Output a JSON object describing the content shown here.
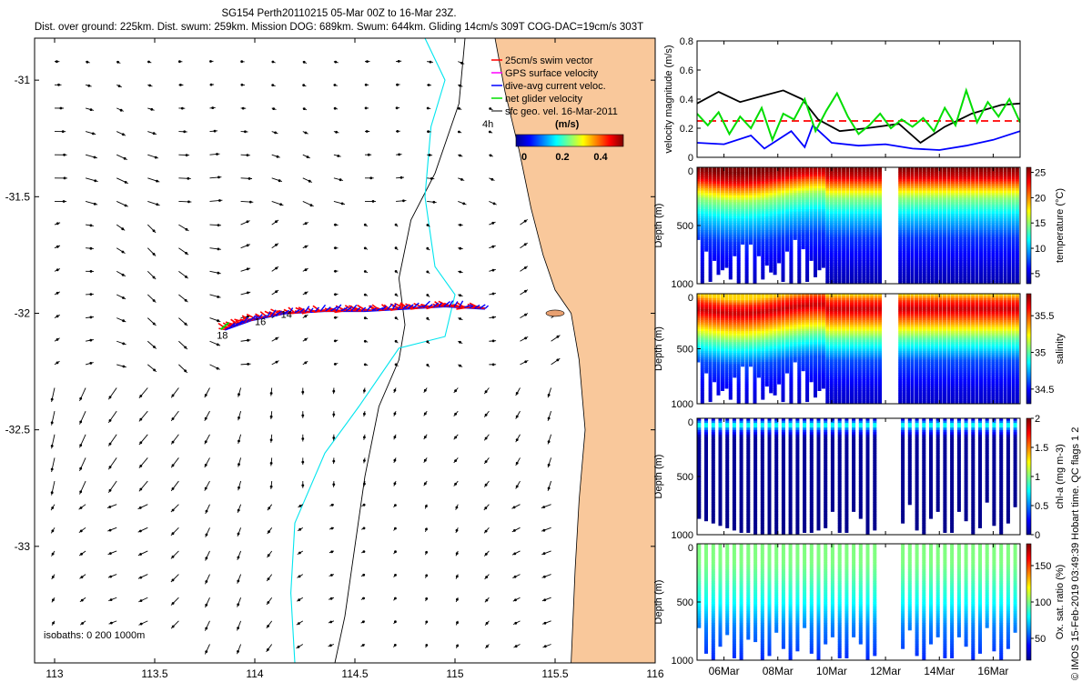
{
  "header": {
    "line1": "SG154 Perth20110215 05-Mar 00Z to 16-Mar 23Z.",
    "line2": "Dist. over ground: 225km. Dist. swum: 259km. Mission DOG: 689km. Swum: 644km. Gliding 14cm/s 309T COG-DAC=19cm/s 303T"
  },
  "credit": "© IMOS 15-Feb-2019 03:49:39 Hobart time. QC flags 1 2",
  "colors": {
    "land": "#f9c89b",
    "isobath_200": "#000000",
    "isobath_1000": "#00e5ee",
    "swim": "#ff0000",
    "dac": "#0000ff",
    "net": "#00dd00",
    "gps": "#ff00ff"
  },
  "chart_data": [
    {
      "type": "map",
      "name": "glider track map",
      "xlim": [
        112.9,
        116.0
      ],
      "ylim": [
        -33.5,
        -30.82
      ],
      "xticks": [
        "113",
        "113.5",
        "114",
        "114.5",
        "115",
        "115.5",
        "116"
      ],
      "xtick_values": [
        113,
        113.5,
        114,
        114.5,
        115,
        115.5,
        116
      ],
      "yticks": [
        "-31",
        "-31.5",
        "-32",
        "-32.5",
        "-33"
      ],
      "ytick_values": [
        -31,
        -31.5,
        -32,
        -32.5,
        -33
      ],
      "legend": [
        {
          "label": "25cm/s swim vector",
          "color": "#ff0000"
        },
        {
          "label": "GPS surface velocity",
          "color": "#ff00ff"
        },
        {
          "label": "dive-avg current veloc.",
          "color": "#0000ff"
        },
        {
          "label": "net glider velocity",
          "color": "#00dd00"
        },
        {
          "label": "sfc geo. vel. 16-Mar-2011",
          "color": "#000000"
        }
      ],
      "legend_note": "4h",
      "colorbar": {
        "title": "(m/s)",
        "ticks": [
          "0",
          "0.2",
          "0.4"
        ],
        "range": [
          0,
          0.5
        ]
      },
      "isobath_label": "isobaths: 0   200  1000m",
      "track_labels": [
        "18",
        "16",
        "14"
      ],
      "track": [
        [
          115.15,
          -31.98
        ],
        [
          114.95,
          -31.97
        ],
        [
          114.75,
          -31.98
        ],
        [
          114.55,
          -31.99
        ],
        [
          114.35,
          -31.99
        ],
        [
          114.15,
          -32.0
        ],
        [
          113.98,
          -32.03
        ],
        [
          113.85,
          -32.07
        ]
      ],
      "coastline": [
        [
          115.2,
          -30.82
        ],
        [
          115.25,
          -31.05
        ],
        [
          115.32,
          -31.3
        ],
        [
          115.38,
          -31.55
        ],
        [
          115.44,
          -31.75
        ],
        [
          115.5,
          -31.9
        ],
        [
          115.58,
          -32.0
        ],
        [
          115.62,
          -32.2
        ],
        [
          115.65,
          -32.5
        ],
        [
          115.62,
          -32.8
        ],
        [
          115.6,
          -33.1
        ],
        [
          115.58,
          -33.5
        ]
      ],
      "isobath_200m": [
        [
          115.05,
          -30.82
        ],
        [
          115.02,
          -31.1
        ],
        [
          114.9,
          -31.4
        ],
        [
          114.78,
          -31.6
        ],
        [
          114.72,
          -31.85
        ],
        [
          114.75,
          -32.05
        ],
        [
          114.72,
          -32.2
        ],
        [
          114.62,
          -32.4
        ],
        [
          114.55,
          -32.7
        ],
        [
          114.5,
          -33.0
        ],
        [
          114.45,
          -33.3
        ],
        [
          114.4,
          -33.5
        ]
      ],
      "isobath_1000m": [
        [
          114.85,
          -30.82
        ],
        [
          114.95,
          -31.0
        ],
        [
          114.88,
          -31.2
        ],
        [
          114.85,
          -31.5
        ],
        [
          114.9,
          -31.8
        ],
        [
          115.0,
          -31.92
        ],
        [
          114.95,
          -32.1
        ],
        [
          114.72,
          -32.15
        ],
        [
          114.52,
          -32.4
        ],
        [
          114.35,
          -32.6
        ],
        [
          114.2,
          -32.9
        ],
        [
          114.18,
          -33.2
        ],
        [
          114.2,
          -33.5
        ]
      ]
    },
    {
      "type": "line",
      "name": "velocity",
      "ylabel": "velocity magnitude (m/s)",
      "ylim": [
        0,
        0.8
      ],
      "yticks": [
        "0",
        "0.2",
        "0.4",
        "0.6",
        "0.8"
      ],
      "ytick_values": [
        0,
        0.2,
        0.4,
        0.6,
        0.8
      ],
      "xlim": [
        0,
        12
      ],
      "series": [
        {
          "color": "#ff0000",
          "dashed": true,
          "x": [
            0,
            12
          ],
          "values": [
            0.25,
            0.25
          ]
        },
        {
          "color": "#000000",
          "x": [
            0,
            0.8,
            1.6,
            2.4,
            3.2,
            3.9,
            4.5,
            5.3,
            6.3,
            7.5,
            8.3,
            9.2,
            10.2,
            11.3,
            12
          ],
          "values": [
            0.37,
            0.45,
            0.38,
            0.42,
            0.46,
            0.4,
            0.26,
            0.18,
            0.2,
            0.23,
            0.1,
            0.21,
            0.3,
            0.36,
            0.37
          ]
        },
        {
          "color": "#0000ff",
          "x": [
            0,
            1,
            2,
            2.5,
            3,
            3.5,
            4,
            4.3,
            5,
            6,
            7,
            8,
            9,
            10,
            11,
            12
          ],
          "values": [
            0.1,
            0.09,
            0.15,
            0.06,
            0.12,
            0.18,
            0.07,
            0.22,
            0.1,
            0.08,
            0.09,
            0.06,
            0.05,
            0.08,
            0.12,
            0.18
          ]
        },
        {
          "color": "#00dd00",
          "x": [
            0,
            0.4,
            0.8,
            1.2,
            1.6,
            2.0,
            2.4,
            2.8,
            3.2,
            3.6,
            4.0,
            4.4,
            4.8,
            5.2,
            5.6,
            6.0,
            6.4,
            6.8,
            7.2,
            7.6,
            8.0,
            8.4,
            8.8,
            9.2,
            9.6,
            10.0,
            10.4,
            10.8,
            11.2,
            11.6,
            12.0
          ],
          "values": [
            0.3,
            0.22,
            0.31,
            0.16,
            0.28,
            0.2,
            0.34,
            0.12,
            0.3,
            0.26,
            0.4,
            0.18,
            0.32,
            0.44,
            0.28,
            0.16,
            0.22,
            0.3,
            0.2,
            0.26,
            0.21,
            0.27,
            0.18,
            0.34,
            0.22,
            0.46,
            0.24,
            0.38,
            0.28,
            0.4,
            0.24
          ]
        }
      ]
    },
    {
      "type": "heatmap",
      "name": "temperature",
      "ylabel": "Depth (m)",
      "cbar_label": "temperature (°C)",
      "cbar_ticks": [
        "5",
        "10",
        "15",
        "20",
        "25"
      ],
      "cbar_values": [
        5,
        10,
        15,
        20,
        25
      ],
      "vmin": 3,
      "vmax": 26,
      "yticks": [
        "0",
        "500",
        "1000"
      ],
      "ytick_values": [
        0,
        500,
        1000
      ],
      "ylim": [
        0,
        1000
      ],
      "gaps": [
        [
          6.8,
          7.5
        ]
      ],
      "cmap": "jet",
      "profile": [
        [
          0,
          26
        ],
        [
          75,
          24
        ],
        [
          150,
          20
        ],
        [
          250,
          15
        ],
        [
          400,
          11
        ],
        [
          600,
          7
        ],
        [
          850,
          5
        ],
        [
          1000,
          4
        ]
      ]
    },
    {
      "type": "heatmap",
      "name": "salinity",
      "ylabel": "Depth (m)",
      "cbar_label": "salinity",
      "cbar_ticks": [
        "34.5",
        "35",
        "35.5"
      ],
      "cbar_values": [
        34.5,
        35,
        35.5
      ],
      "vmin": 34.3,
      "vmax": 35.8,
      "yticks": [
        "0",
        "500",
        "1000"
      ],
      "ytick_values": [
        0,
        500,
        1000
      ],
      "ylim": [
        0,
        1000
      ],
      "gaps": [
        [
          6.8,
          7.5
        ]
      ],
      "cmap": "jet",
      "profile": [
        [
          0,
          35.3
        ],
        [
          60,
          35.55
        ],
        [
          130,
          35.7
        ],
        [
          250,
          35.4
        ],
        [
          400,
          35.0
        ],
        [
          600,
          34.6
        ],
        [
          850,
          34.45
        ],
        [
          1000,
          34.4
        ]
      ]
    },
    {
      "type": "heatmap",
      "name": "chl-a",
      "ylabel": "Depth (m)",
      "cbar_label": "chl-a (mg m-3)",
      "cbar_ticks": [
        "0",
        "0.5",
        "1",
        "1.5",
        "2"
      ],
      "cbar_values": [
        0,
        0.5,
        1,
        1.5,
        2
      ],
      "vmin": 0,
      "vmax": 2,
      "yticks": [
        "0",
        "500",
        "1000"
      ],
      "ytick_values": [
        0,
        500,
        1000
      ],
      "ylim": [
        0,
        1000
      ],
      "gaps": [
        [
          6.8,
          7.5
        ]
      ],
      "cmap": "jet",
      "profile": [
        [
          0,
          0.2
        ],
        [
          50,
          0.9
        ],
        [
          90,
          0.4
        ],
        [
          150,
          0.05
        ],
        [
          1000,
          0.02
        ]
      ]
    },
    {
      "type": "heatmap",
      "name": "oxygen",
      "ylabel": "Depth (m)",
      "cbar_label": "Ox. sat. ratio (%)",
      "cbar_ticks": [
        "50",
        "100",
        "150"
      ],
      "cbar_values": [
        50,
        100,
        150
      ],
      "vmin": 20,
      "vmax": 180,
      "yticks": [
        "0",
        "500",
        "1000"
      ],
      "ytick_values": [
        0,
        500,
        1000
      ],
      "ylim": [
        0,
        1000
      ],
      "gaps": [
        [
          6.8,
          7.5
        ]
      ],
      "cmap": "jet",
      "profile": [
        [
          0,
          100
        ],
        [
          150,
          100
        ],
        [
          300,
          93
        ],
        [
          500,
          80
        ],
        [
          700,
          60
        ],
        [
          1000,
          45
        ]
      ]
    }
  ],
  "time_axis": {
    "labels": [
      "06Mar",
      "08Mar",
      "10Mar",
      "12Mar",
      "14Mar",
      "16Mar"
    ],
    "label_days": [
      1,
      3,
      5,
      7,
      9,
      11
    ],
    "xlim": [
      0,
      12
    ]
  }
}
